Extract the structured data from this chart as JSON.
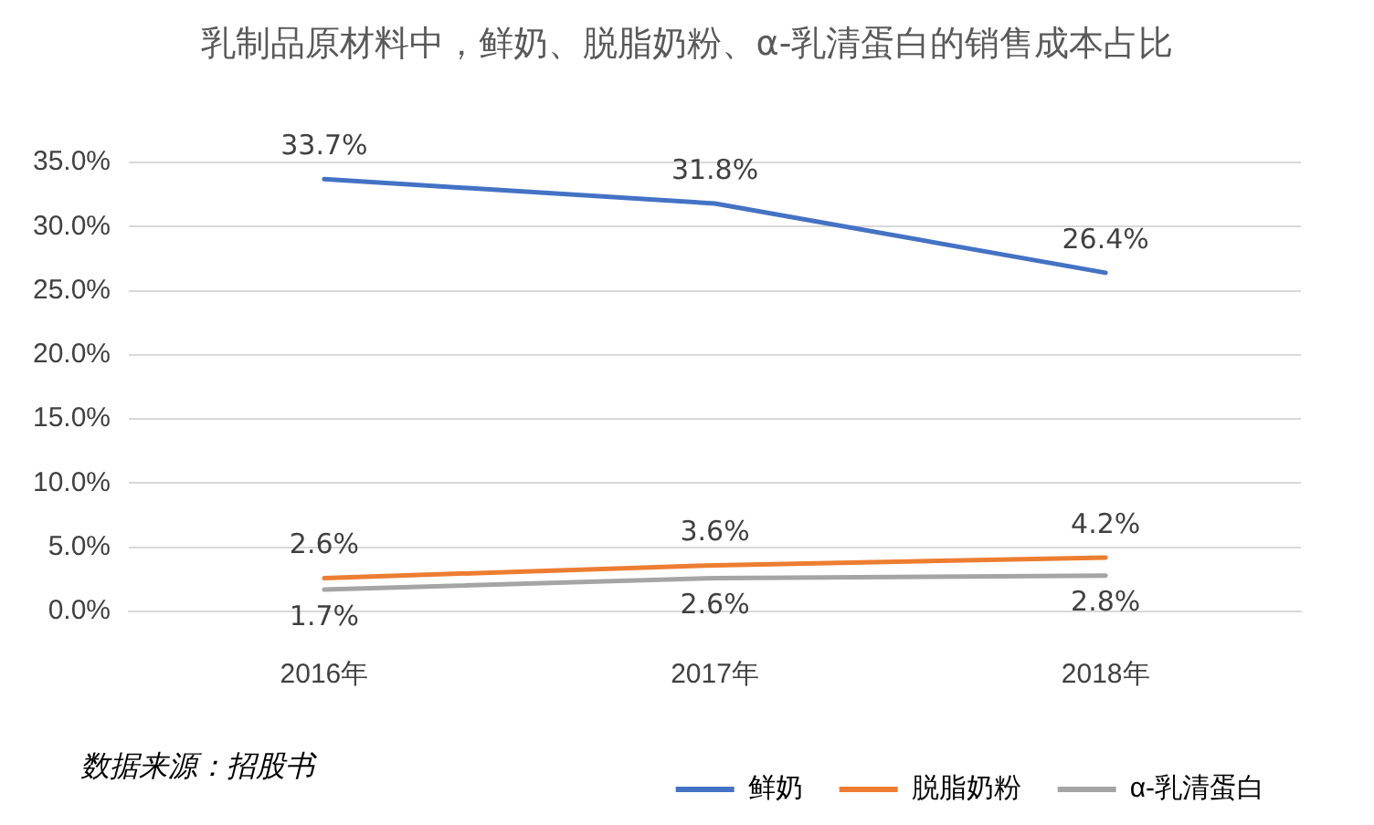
{
  "chart_data": {
    "type": "line",
    "title": "乳制品原材料中，鲜奶、脱脂奶粉、α-乳清蛋白的销售成本占比",
    "categories": [
      "2016年",
      "2017年",
      "2018年"
    ],
    "series": [
      {
        "name": "鲜奶",
        "color": "#4472c4",
        "values": [
          33.7,
          31.8,
          26.4
        ],
        "value_labels": [
          "33.7%",
          "31.8%",
          "26.4%"
        ]
      },
      {
        "name": "脱脂奶粉",
        "color": "#ed7d31",
        "values": [
          2.6,
          3.6,
          4.2
        ],
        "value_labels": [
          "2.6%",
          "3.6%",
          "4.2%"
        ]
      },
      {
        "name": "α-乳清蛋白",
        "color": "#a5a5a5",
        "values": [
          1.7,
          2.6,
          2.8
        ],
        "value_labels": [
          "1.7%",
          "2.6%",
          "2.8%"
        ]
      }
    ],
    "ylim": [
      0,
      35
    ],
    "yticks": [
      {
        "value": 0,
        "label": "0.0%"
      },
      {
        "value": 5,
        "label": "5.0%"
      },
      {
        "value": 10,
        "label": "10.0%"
      },
      {
        "value": 15,
        "label": "15.0%"
      },
      {
        "value": 20,
        "label": "20.0%"
      },
      {
        "value": 25,
        "label": "25.0%"
      },
      {
        "value": 30,
        "label": "30.0%"
      },
      {
        "value": 35,
        "label": "35.0%"
      }
    ],
    "grid": "y",
    "legend": "bottom right",
    "marker": "none",
    "line_style": "solid",
    "annotations": [
      "数据来源：招股书"
    ]
  }
}
